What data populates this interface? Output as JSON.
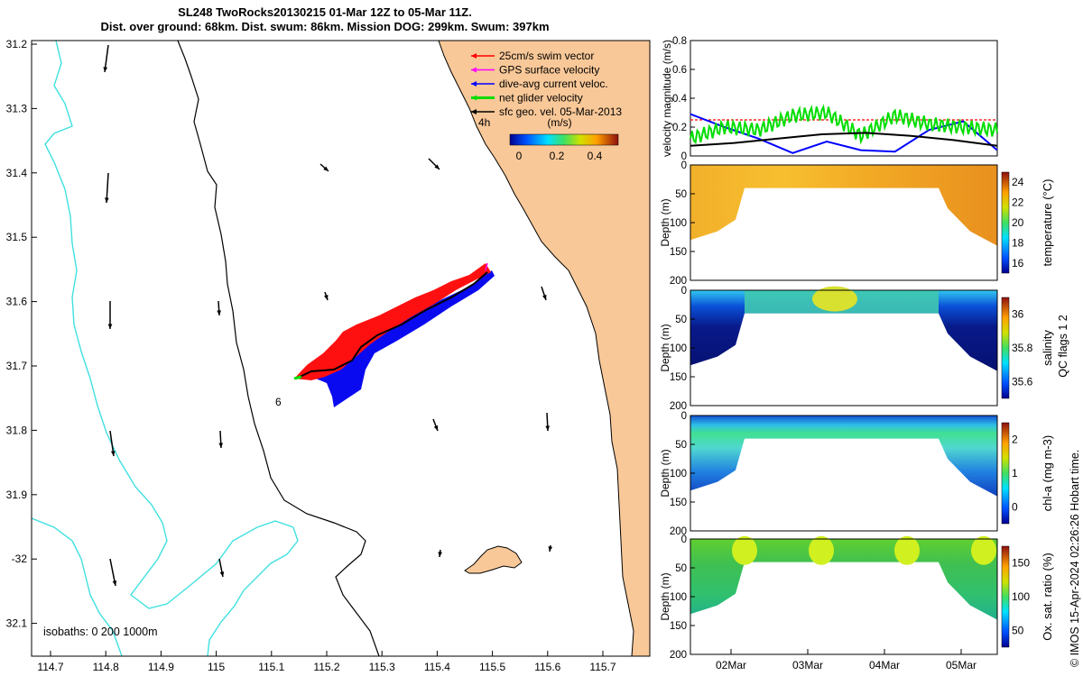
{
  "title": {
    "line1": "SL248 TwoRocks20130215 01-Mar 12Z to 05-Mar 11Z.",
    "line2": "Dist. over ground: 68km. Dist. swum: 86km. Mission DOG: 299km. Swum: 397km"
  },
  "map": {
    "lat_ticks": [
      "31.2",
      "31.3",
      "31.4",
      "31.5",
      "31.6",
      "31.7",
      "31.8",
      "31.9",
      "-32",
      "32.1"
    ],
    "lon_ticks": [
      "114.7",
      "114.8",
      "114.9",
      "115",
      "115.1",
      "115.2",
      "115.3",
      "115.4",
      "115.5",
      "115.6",
      "115.7"
    ],
    "legend": [
      {
        "label": "25cm/s swim vector",
        "color": "#ff0000"
      },
      {
        "label": "GPS surface velocity",
        "color": "#ff00ff"
      },
      {
        "label": "dive-avg current veloc.",
        "color": "#0000ff"
      },
      {
        "label": "net glider velocity",
        "color": "#00dd00"
      },
      {
        "label": "sfc geo. vel. 05-Mar-2013",
        "color": "#000000"
      }
    ],
    "time_marker": "4h",
    "colorbar_unit": "(m/s)",
    "colorbar_ticks": [
      "0",
      "0.2",
      "0.4"
    ],
    "label_6": "6",
    "isobaths_label": "isobaths: 0   200  1000m",
    "colors": {
      "land": "#f9c898",
      "isobath_deep": "#40e0e0",
      "water": "#ffffff"
    }
  },
  "chart_data": [
    {
      "type": "line",
      "ylabel": "velocity magnitude (m/s)",
      "ylim": [
        0,
        0.8
      ],
      "yticks": [
        "0",
        "0.2",
        "0.4",
        "0.6",
        "0.8"
      ],
      "series": [
        {
          "name": "25cm/s swim vector",
          "color": "#ff0000",
          "values": [
            0.25,
            0.25,
            0.25,
            0.25,
            0.25,
            0.25,
            0.25,
            0.25,
            0.25
          ]
        },
        {
          "name": "dive-avg current veloc.",
          "color": "#0000ff",
          "values": [
            0.29,
            0.2,
            0.12,
            0.02,
            0.1,
            0.04,
            0.03,
            0.18,
            0.24,
            0.04
          ]
        },
        {
          "name": "net glider velocity",
          "color": "#00dd00",
          "values": [
            0.12,
            0.2,
            0.18,
            0.28,
            0.3,
            0.14,
            0.28,
            0.22,
            0.2,
            0.18
          ]
        },
        {
          "name": "sfc geo. vel.",
          "color": "#000000",
          "values": [
            0.07,
            0.09,
            0.12,
            0.15,
            0.16,
            0.14,
            0.11,
            0.07
          ]
        }
      ]
    },
    {
      "type": "heatmap",
      "clabel": "temperature (°C)",
      "ylabel": "Depth (m)",
      "ylim": [
        0,
        200
      ],
      "yticks": [
        "0",
        "50",
        "100",
        "150",
        "200"
      ],
      "cticks": [
        "16",
        "18",
        "20",
        "22",
        "24"
      ]
    },
    {
      "type": "heatmap",
      "clabel": "salinity",
      "ylabel": "Depth (m)",
      "ylim": [
        0,
        200
      ],
      "yticks": [
        "0",
        "50",
        "100",
        "150",
        "200"
      ],
      "cticks": [
        "35.6",
        "35.8",
        "36"
      ]
    },
    {
      "type": "heatmap",
      "clabel": "chl-a (mg m-3)",
      "ylabel": "Depth (m)",
      "ylim": [
        0,
        200
      ],
      "yticks": [
        "0",
        "50",
        "100",
        "150",
        "200"
      ],
      "cticks": [
        "0",
        "1",
        "2"
      ]
    },
    {
      "type": "heatmap",
      "clabel": "Ox. sat. ratio (%)",
      "ylabel": "Depth (m)",
      "ylim": [
        0,
        200
      ],
      "yticks": [
        "0",
        "50",
        "100",
        "150",
        "200"
      ],
      "cticks": [
        "50",
        "100",
        "150"
      ]
    }
  ],
  "time_axis": [
    "02Mar",
    "03Mar",
    "04Mar",
    "05Mar"
  ],
  "qc_label": "QC flags 1  2",
  "copyright": "© IMOS 15-Apr-2024 02:26:26 Hobart time."
}
